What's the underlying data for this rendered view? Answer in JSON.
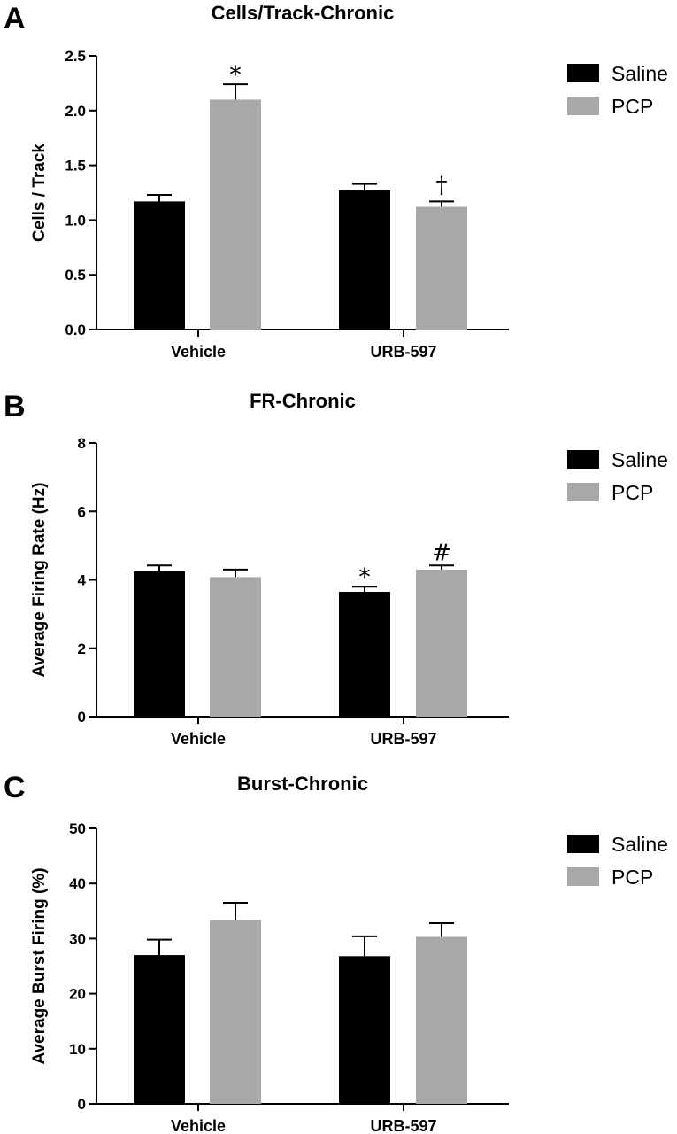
{
  "chart_data": [
    {
      "panel": "A",
      "type": "bar",
      "title": "Cells/Track-Chronic",
      "xlabel": "",
      "ylabel": "Cells / Track",
      "categories": [
        "Vehicle",
        "URB-597"
      ],
      "ylim": [
        0,
        2.5
      ],
      "yticks": [
        "0.0",
        "0.5",
        "1.0",
        "1.5",
        "2.0",
        "2.5"
      ],
      "legend_position": "top-right",
      "series": [
        {
          "name": "Saline",
          "color": "#000000",
          "values": [
            1.17,
            1.27
          ],
          "errors": [
            0.06,
            0.06
          ],
          "annotations": [
            "",
            ""
          ]
        },
        {
          "name": "PCP",
          "color": "#a7a8aa",
          "values": [
            2.1,
            1.12
          ],
          "errors": [
            0.14,
            0.05
          ],
          "annotations": [
            "*",
            "†"
          ]
        }
      ]
    },
    {
      "panel": "B",
      "type": "bar",
      "title": "FR-Chronic",
      "xlabel": "",
      "ylabel": "Average Firing Rate (Hz)",
      "categories": [
        "Vehicle",
        "URB-597"
      ],
      "ylim": [
        0,
        8
      ],
      "yticks": [
        "0",
        "2",
        "4",
        "6",
        "8"
      ],
      "legend_position": "top-right",
      "series": [
        {
          "name": "Saline",
          "color": "#000000",
          "values": [
            4.25,
            3.65
          ],
          "errors": [
            0.17,
            0.15
          ],
          "annotations": [
            "",
            "*"
          ]
        },
        {
          "name": "PCP",
          "color": "#a7a8aa",
          "values": [
            4.08,
            4.3
          ],
          "errors": [
            0.22,
            0.12
          ],
          "annotations": [
            "",
            "#"
          ]
        }
      ]
    },
    {
      "panel": "C",
      "type": "bar",
      "title": "Burst-Chronic",
      "xlabel": "",
      "ylabel": "Average Burst Firing (%)",
      "categories": [
        "Vehicle",
        "URB-597"
      ],
      "ylim": [
        0,
        50
      ],
      "yticks": [
        "0",
        "10",
        "20",
        "30",
        "40",
        "50"
      ],
      "legend_position": "top-right",
      "series": [
        {
          "name": "Saline",
          "color": "#000000",
          "values": [
            27.0,
            26.8
          ],
          "errors": [
            2.8,
            3.6
          ],
          "annotations": [
            "",
            ""
          ]
        },
        {
          "name": "PCP",
          "color": "#a7a8aa",
          "values": [
            33.3,
            30.3
          ],
          "errors": [
            3.2,
            2.5
          ],
          "annotations": [
            "",
            ""
          ]
        }
      ]
    }
  ]
}
